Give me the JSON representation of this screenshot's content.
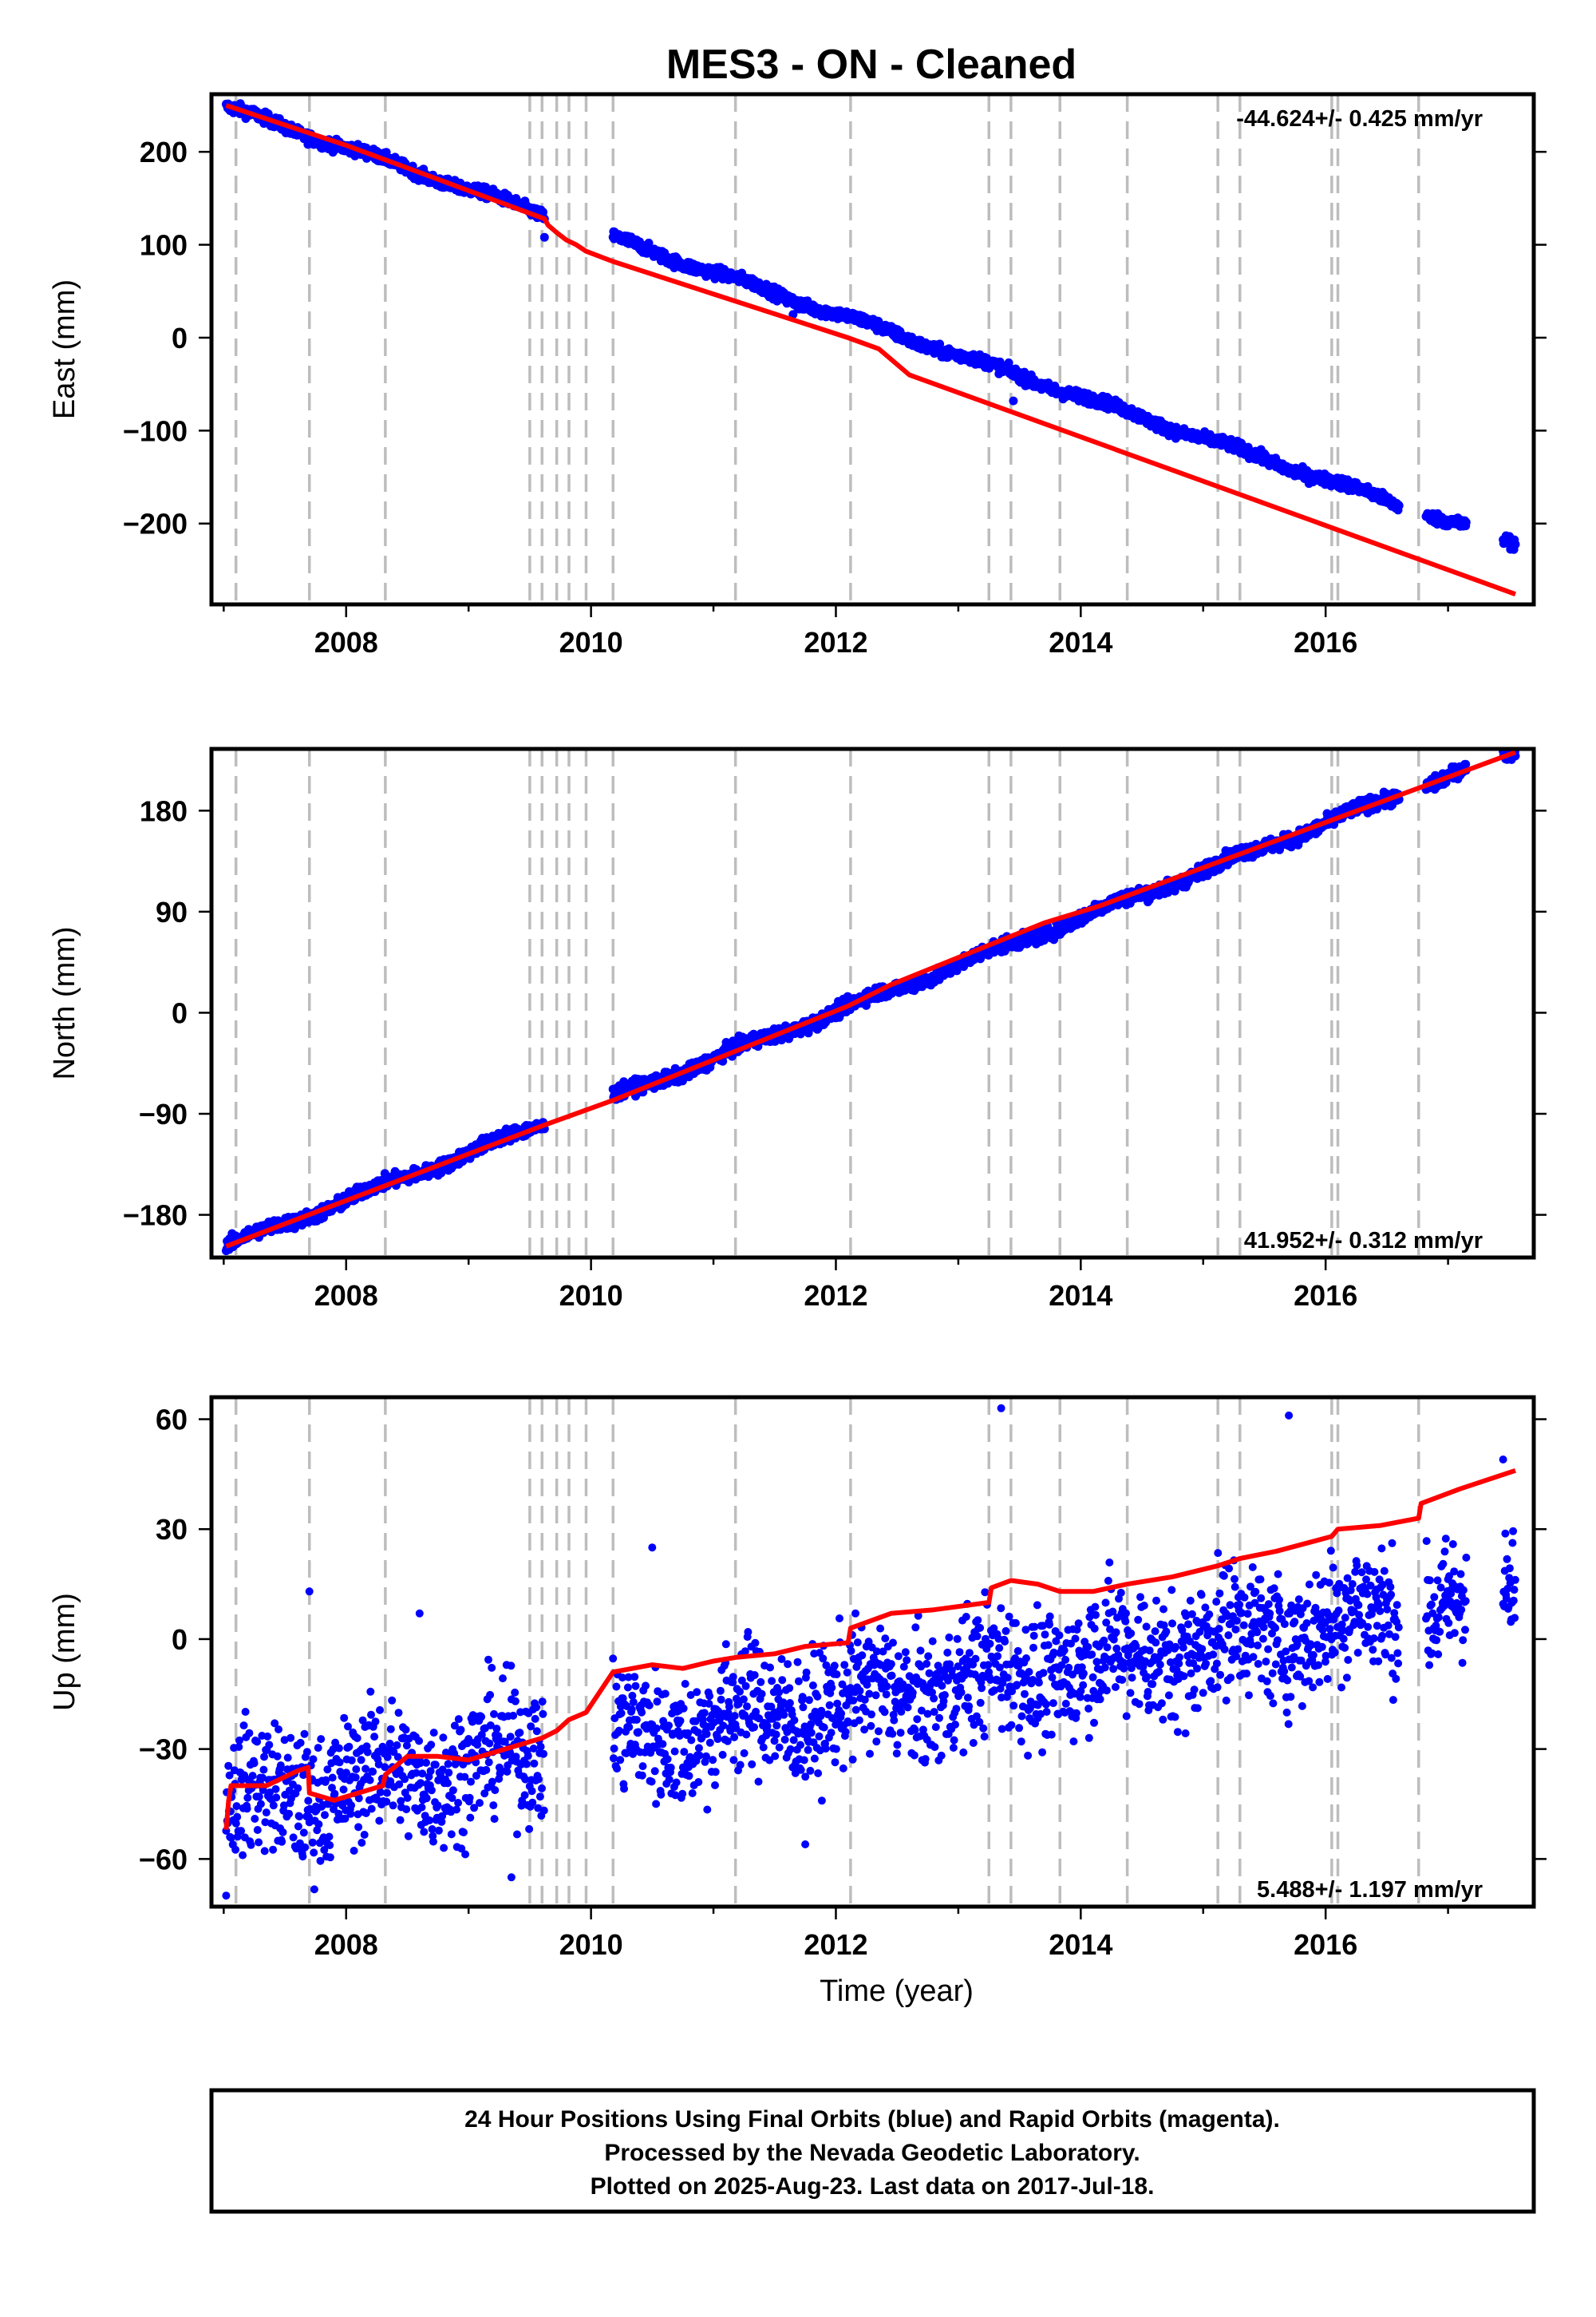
{
  "title": "MES3  - ON - Cleaned",
  "colors": {
    "points": "#0000ff",
    "model": "#ff0000",
    "gaps": "#bdbdbd",
    "frame": "#000000"
  },
  "chart_data": [
    {
      "type": "scatter",
      "ylabel": "East (mm)",
      "rate_text": "-44.624+/- 0.425 mm/yr",
      "rate_position": "top-right",
      "xlim": [
        2006.9,
        2017.7
      ],
      "ylim": [
        -287,
        262
      ],
      "x_ticks": [
        2008,
        2010,
        2012,
        2014,
        2016
      ],
      "y_ticks": [
        -200,
        -100,
        0,
        100,
        200
      ],
      "y_tick_labels": [
        "−200",
        "−100",
        "0",
        "100",
        "200"
      ],
      "series": [
        {
          "kind": "points",
          "segments": [
            [
              2007.02,
              2009.62
            ],
            [
              2010.18,
              2016.6
            ],
            [
              2016.82,
              2017.15
            ],
            [
              2017.45,
              2017.55
            ]
          ],
          "start": 248,
          "rate": -44.624,
          "noise": 3,
          "outliers": [
            [
              2009.62,
              108
            ],
            [
              2011.65,
              25
            ],
            [
              2013.45,
              -68
            ]
          ]
        },
        {
          "kind": "model",
          "points": [
            [
              2007.02,
              250
            ],
            [
              2008.0,
              207
            ],
            [
              2009.62,
              128
            ],
            [
              2009.65,
              121
            ],
            [
              2009.72,
              113
            ],
            [
              2009.8,
              105
            ],
            [
              2009.88,
              100
            ],
            [
              2009.96,
              93
            ],
            [
              2010.18,
              82
            ],
            [
              2012.1,
              0
            ],
            [
              2012.35,
              -12
            ],
            [
              2012.6,
              -40
            ],
            [
              2017.55,
              -276
            ]
          ]
        }
      ],
      "gap_lines": [
        2007.1,
        2007.7,
        2008.32,
        2009.5,
        2009.6,
        2009.72,
        2009.82,
        2009.96,
        2010.18,
        2011.18,
        2012.12,
        2013.25,
        2013.43,
        2013.83,
        2014.38,
        2015.12,
        2015.3,
        2016.05,
        2016.1,
        2016.76
      ]
    },
    {
      "type": "scatter",
      "ylabel": "North (mm)",
      "rate_text": "41.952+/- 0.312 mm/yr",
      "rate_position": "bottom-right",
      "xlim": [
        2006.9,
        2017.7
      ],
      "ylim": [
        -218,
        235
      ],
      "x_ticks": [
        2008,
        2010,
        2012,
        2014,
        2016
      ],
      "y_ticks": [
        -180,
        -90,
        0,
        90,
        180
      ],
      "y_tick_labels": [
        "−180",
        "−90",
        "0",
        "90",
        "180"
      ],
      "series": [
        {
          "kind": "points",
          "segments": [
            [
              2007.02,
              2009.62
            ],
            [
              2010.18,
              2016.6
            ],
            [
              2016.82,
              2017.15
            ],
            [
              2017.45,
              2017.55
            ]
          ],
          "start": -208,
          "rate": 41.952,
          "noise": 3,
          "outliers": []
        },
        {
          "kind": "model",
          "points": [
            [
              2007.02,
              -208
            ],
            [
              2009.62,
              -100
            ],
            [
              2010.18,
              -78
            ],
            [
              2012.1,
              6
            ],
            [
              2012.45,
              25
            ],
            [
              2013.7,
              80
            ],
            [
              2014.15,
              95
            ],
            [
              2017.55,
              232
            ]
          ]
        }
      ],
      "gap_lines": [
        2007.1,
        2007.7,
        2008.32,
        2009.5,
        2009.6,
        2009.72,
        2009.82,
        2009.96,
        2010.18,
        2011.18,
        2012.12,
        2013.25,
        2013.43,
        2013.83,
        2014.38,
        2015.12,
        2015.3,
        2016.05,
        2016.1,
        2016.76
      ]
    },
    {
      "type": "scatter",
      "ylabel": "Up (mm)",
      "xlabel": "Time (year)",
      "rate_text": "5.488+/- 1.197 mm/yr",
      "rate_position": "bottom-right",
      "xlim": [
        2006.9,
        2017.7
      ],
      "ylim": [
        -73,
        66
      ],
      "x_ticks": [
        2008,
        2010,
        2012,
        2014,
        2016
      ],
      "y_ticks": [
        -60,
        -30,
        0,
        30,
        60
      ],
      "y_tick_labels": [
        "−60",
        "−30",
        "0",
        "30",
        "60"
      ],
      "series": [
        {
          "kind": "points",
          "segments": [
            [
              2007.02,
              2009.62
            ],
            [
              2010.18,
              2016.6
            ],
            [
              2016.82,
              2017.15
            ],
            [
              2017.45,
              2017.55
            ]
          ],
          "start": -45,
          "rate": 5.488,
          "noise": 9,
          "outliers": [
            [
              2007.7,
              13
            ],
            [
              2008.6,
              7
            ],
            [
              2010.5,
              25
            ],
            [
              2011.75,
              -56
            ],
            [
              2013.35,
              63
            ],
            [
              2013.65,
              -18
            ],
            [
              2015.7,
              61
            ],
            [
              2017.45,
              49
            ],
            [
              2007.02,
              -70
            ],
            [
              2009.35,
              -65
            ]
          ]
        },
        {
          "kind": "model",
          "points": [
            [
              2007.02,
              -52
            ],
            [
              2007.04,
              -44
            ],
            [
              2007.06,
              -40
            ],
            [
              2007.35,
              -40
            ],
            [
              2007.6,
              -36
            ],
            [
              2007.69,
              -35
            ],
            [
              2007.7,
              -42
            ],
            [
              2007.9,
              -44
            ],
            [
              2008.3,
              -40
            ],
            [
              2008.32,
              -37
            ],
            [
              2008.5,
              -32
            ],
            [
              2008.75,
              -32
            ],
            [
              2009.0,
              -33
            ],
            [
              2009.3,
              -30
            ],
            [
              2009.5,
              -28
            ],
            [
              2009.6,
              -27
            ],
            [
              2009.72,
              -25
            ],
            [
              2009.82,
              -22
            ],
            [
              2009.96,
              -20
            ],
            [
              2010.18,
              -9
            ],
            [
              2010.5,
              -7
            ],
            [
              2010.75,
              -8
            ],
            [
              2011.0,
              -6
            ],
            [
              2011.18,
              -5
            ],
            [
              2011.5,
              -4
            ],
            [
              2011.75,
              -2
            ],
            [
              2012.1,
              -1
            ],
            [
              2012.12,
              3
            ],
            [
              2012.45,
              7
            ],
            [
              2012.8,
              8
            ],
            [
              2013.25,
              10
            ],
            [
              2013.27,
              14
            ],
            [
              2013.43,
              16
            ],
            [
              2013.65,
              15
            ],
            [
              2013.83,
              13
            ],
            [
              2014.1,
              13
            ],
            [
              2014.38,
              15
            ],
            [
              2014.75,
              17
            ],
            [
              2015.12,
              20
            ],
            [
              2015.3,
              22
            ],
            [
              2015.6,
              24
            ],
            [
              2016.05,
              28
            ],
            [
              2016.1,
              30
            ],
            [
              2016.45,
              31
            ],
            [
              2016.76,
              33
            ],
            [
              2016.78,
              37
            ],
            [
              2017.1,
              41
            ],
            [
              2017.55,
              46
            ]
          ]
        }
      ],
      "gap_lines": [
        2007.1,
        2007.7,
        2008.32,
        2009.5,
        2009.6,
        2009.72,
        2009.82,
        2009.96,
        2010.18,
        2011.18,
        2012.12,
        2013.25,
        2013.43,
        2013.83,
        2014.38,
        2015.12,
        2015.3,
        2016.05,
        2016.1,
        2016.76
      ]
    }
  ],
  "footer": {
    "line1": "24 Hour Positions Using Final Orbits (blue) and Rapid Orbits (magenta).",
    "line2": "Processed by the Nevada Geodetic Laboratory.",
    "line3": "Plotted on 2025-Aug-23. Last data on 2017-Jul-18."
  }
}
